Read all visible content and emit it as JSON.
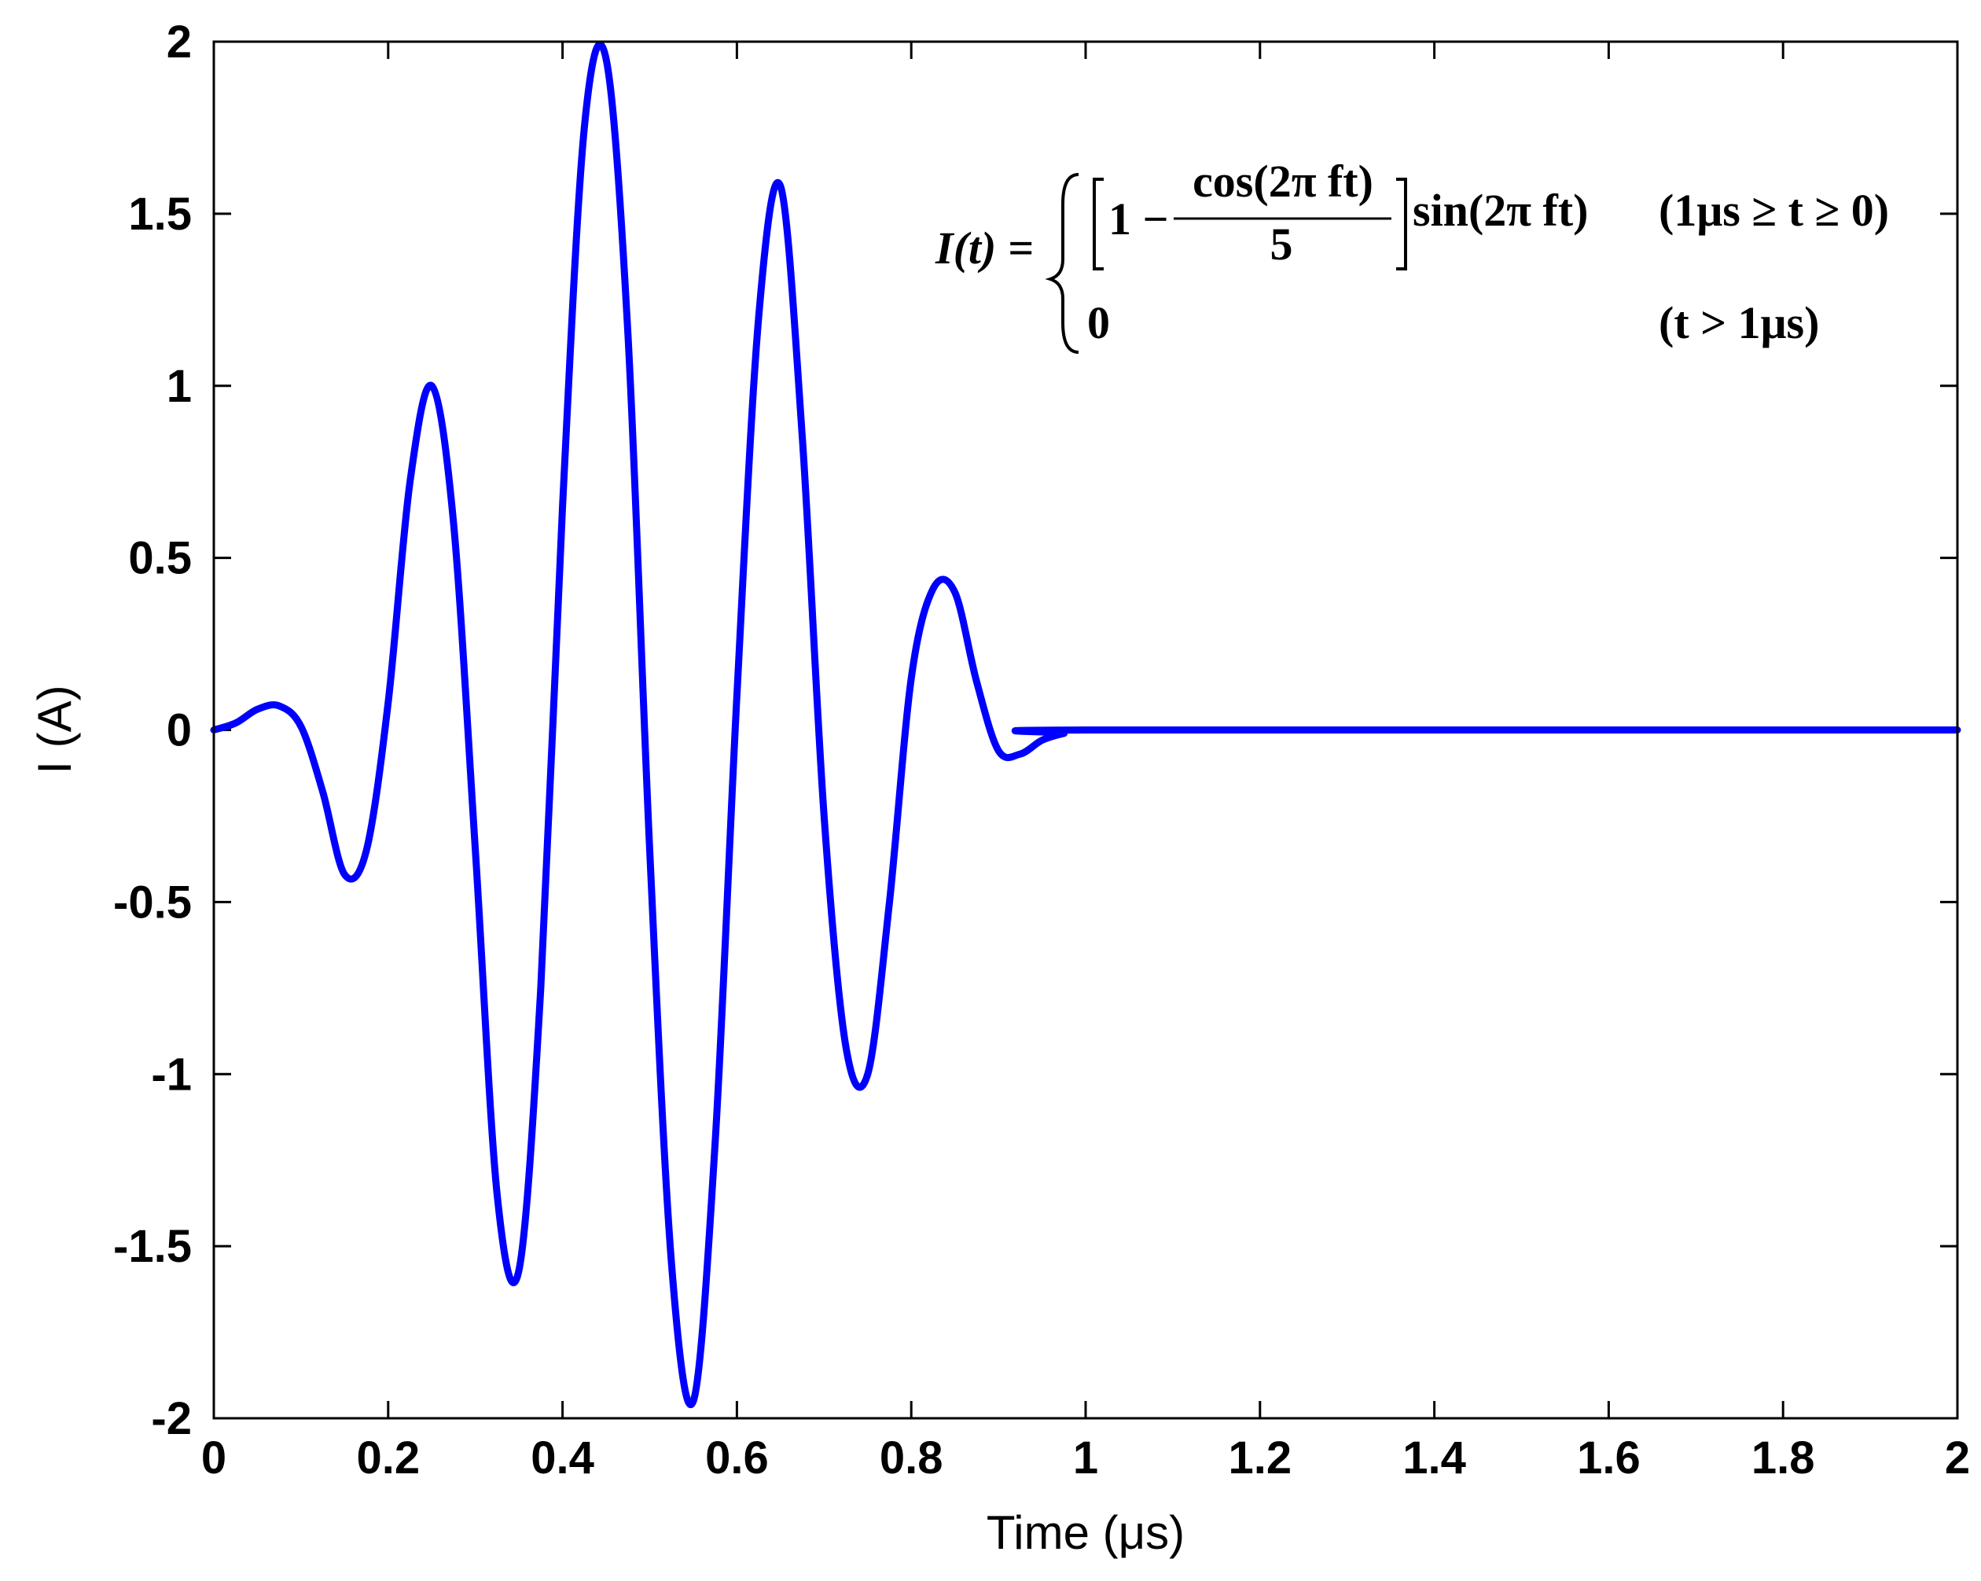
{
  "chart_data": {
    "type": "line",
    "title": "",
    "xlabel": "Time (μs)",
    "ylabel": "I (A)",
    "xlim": [
      0,
      2
    ],
    "ylim": [
      -2,
      2
    ],
    "xticks": [
      "0",
      "0.2",
      "0.4",
      "0.6",
      "0.8",
      "1",
      "1.2",
      "1.4",
      "1.6",
      "1.8",
      "2"
    ],
    "yticks": [
      "-2",
      "-1.5",
      "-1",
      "-0.5",
      "0",
      "0.5",
      "1",
      "1.5",
      "2"
    ],
    "grid": false,
    "line_color": "#0000ff",
    "series": [
      {
        "x": [
          0,
          0.025,
          0.05,
          0.075,
          0.1,
          0.125,
          0.15,
          0.175,
          0.2,
          0.225,
          0.25,
          0.275,
          0.3,
          0.325,
          0.35,
          0.375,
          0.4,
          0.425,
          0.45,
          0.475,
          0.5,
          0.525,
          0.55,
          0.575,
          0.6,
          0.625,
          0.65,
          0.675,
          0.7,
          0.725,
          0.75,
          0.775,
          0.8,
          0.825,
          0.85,
          0.875,
          0.9,
          0.925,
          0.95,
          0.975,
          1.0,
          2.0
        ],
        "y": [
          0.0,
          0.02,
          0.06,
          0.07,
          0.01,
          -0.18,
          -0.42,
          -0.35,
          0.08,
          0.72,
          1.0,
          0.6,
          -0.35,
          -1.35,
          -1.57,
          -0.75,
          0.65,
          1.75,
          1.95,
          1.15,
          -0.35,
          -1.55,
          -1.95,
          -1.2,
          0.1,
          1.2,
          1.58,
          0.85,
          -0.25,
          -0.92,
          -1.0,
          -0.5,
          0.15,
          0.41,
          0.4,
          0.14,
          -0.06,
          -0.07,
          -0.03,
          -0.01,
          0.0,
          0.0
        ]
      }
    ],
    "equation": {
      "lhs": "I(t) =",
      "case1_bracket_start": "1 −",
      "case1_numerator": "cos(2π ft)",
      "case1_denominator": "5",
      "case1_tail": "sin(2π ft)",
      "case1_condition": "(1μs ≥ t ≥ 0)",
      "case2_value": "0",
      "case2_condition": "(t > 1μs)"
    }
  }
}
